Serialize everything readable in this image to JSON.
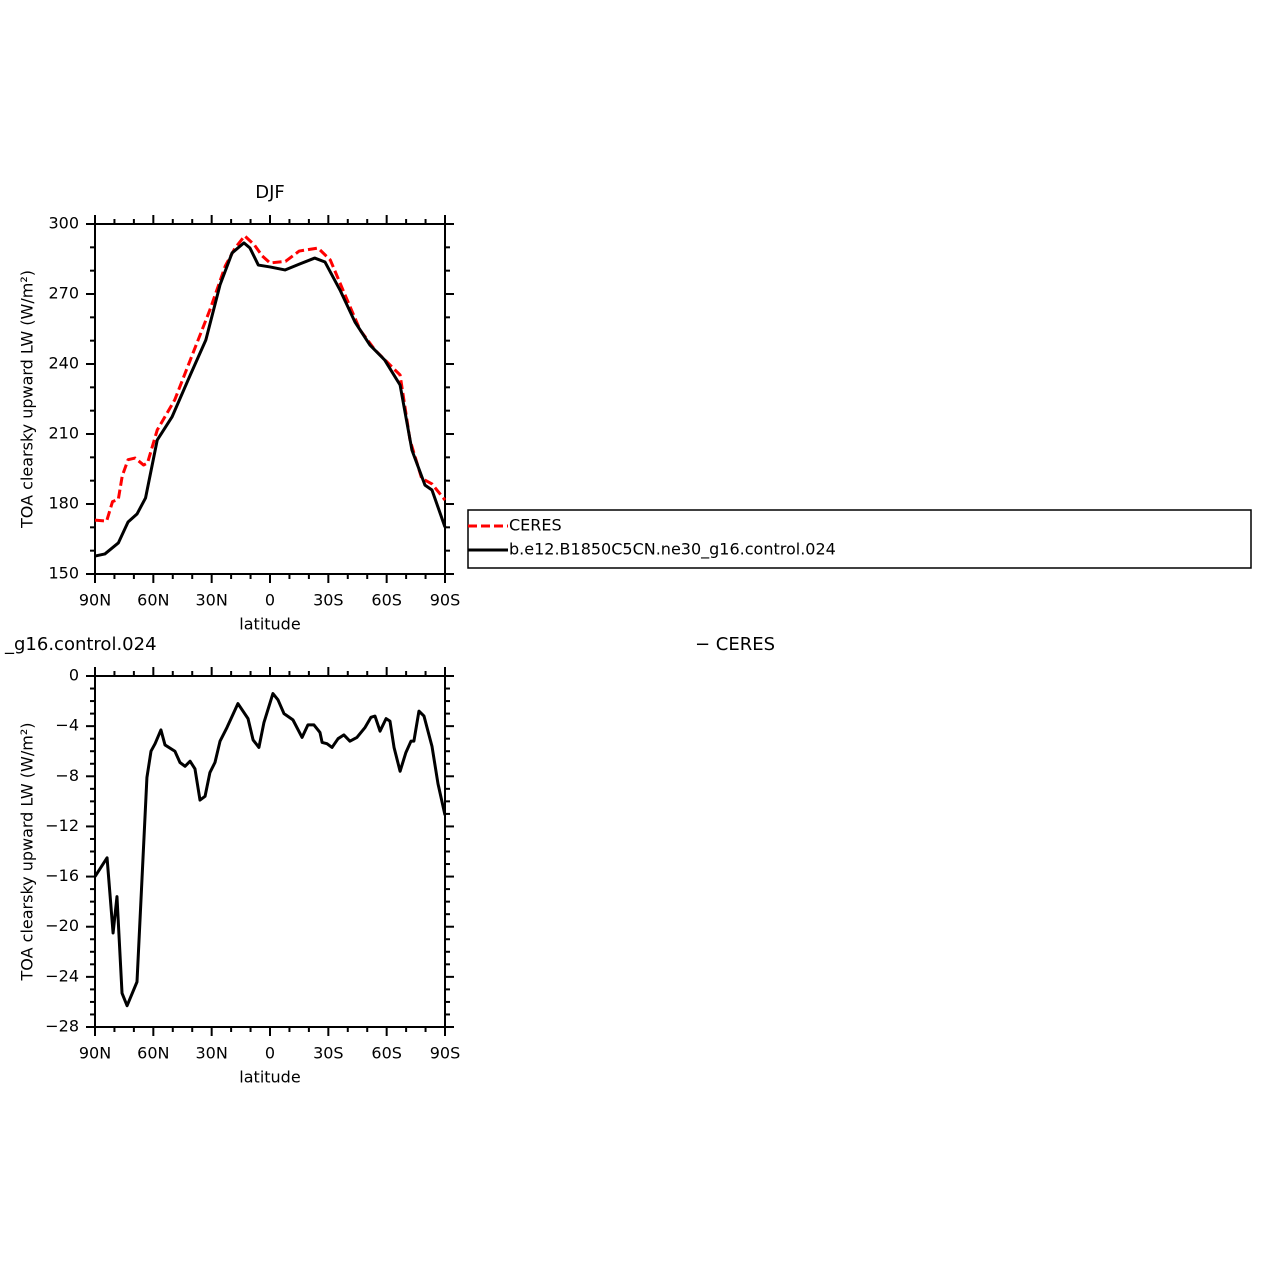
{
  "chart_data": [
    {
      "type": "line",
      "title": "DJF",
      "ylabel": "TOA clearsky upward LW (W/m²)",
      "xlabel": "latitude",
      "xlim": [
        90,
        -90
      ],
      "xticks": [
        {
          "value": 90,
          "label": "90N"
        },
        {
          "value": 60,
          "label": "60N"
        },
        {
          "value": 30,
          "label": "30N"
        },
        0,
        {
          "value": -30,
          "label": "30S"
        },
        {
          "value": -60,
          "label": "60S"
        },
        {
          "value": -90,
          "label": "90S"
        }
      ],
      "ylim": [
        150,
        300
      ],
      "yticks": [
        150,
        180,
        210,
        240,
        270,
        300
      ],
      "legend": "right",
      "series": [
        {
          "name": "CERES",
          "color": "#ff0000",
          "linestyle": "dashed",
          "x": [
            90,
            84,
            81,
            78,
            76,
            73,
            69.4,
            65,
            63,
            58,
            49,
            41,
            31,
            23,
            18,
            13,
            8,
            4,
            0,
            -8,
            -15,
            -24.7,
            -31,
            -38.6,
            -46.3,
            -54,
            -61.7,
            -66.9,
            -72,
            -78,
            -83.3,
            -90
          ],
          "values": [
            173.1,
            172.7,
            181,
            182,
            192,
            199,
            199.7,
            196.7,
            197.6,
            211.7,
            224.6,
            241.7,
            263,
            282,
            289.7,
            294.9,
            291,
            286.3,
            283.3,
            284,
            288.4,
            289.7,
            284.6,
            269.6,
            254.6,
            246,
            239.6,
            235.3,
            207.4,
            191,
            188.6,
            181.7
          ]
        },
        {
          "name": "b.e12.B1850C5CN.ne30_g16.control.024",
          "color": "#000000",
          "linestyle": "solid",
          "x": [
            90,
            84.9,
            78,
            73,
            68.4,
            64,
            58,
            50.4,
            41,
            33,
            25.7,
            19.5,
            13.4,
            10.3,
            6,
            0,
            -7.7,
            -15.4,
            -23,
            -28.3,
            -36,
            -43.7,
            -51.4,
            -59,
            -66.9,
            -73,
            -79.7,
            -83.3,
            -90
          ],
          "values": [
            157.7,
            158.6,
            163.3,
            172.3,
            175.7,
            182.6,
            207.4,
            217.3,
            235.3,
            250.3,
            273.9,
            287.6,
            291.9,
            289.7,
            282.4,
            281.6,
            280.3,
            282.9,
            285.4,
            283.7,
            271.7,
            258,
            248.1,
            241.7,
            231,
            203.1,
            188.1,
            186,
            170.1
          ]
        }
      ]
    },
    {
      "type": "line",
      "title_left": "_g16.control.024",
      "title_right": "− CERES",
      "ylabel": "TOA clearsky upward LW (W/m²)",
      "xlabel": "latitude",
      "xlim": [
        90,
        -90
      ],
      "xticks": [
        {
          "value": 90,
          "label": "90N"
        },
        {
          "value": 60,
          "label": "60N"
        },
        {
          "value": 30,
          "label": "30N"
        },
        0,
        {
          "value": -30,
          "label": "30S"
        },
        {
          "value": -60,
          "label": "60S"
        },
        {
          "value": -90,
          "label": "90S"
        }
      ],
      "ylim": [
        -28,
        0
      ],
      "yticks": [
        {
          "value": -28,
          "label": "−28"
        },
        {
          "value": -24,
          "label": "−24"
        },
        {
          "value": -20,
          "label": "−20"
        },
        {
          "value": -16,
          "label": "−16"
        },
        {
          "value": -12,
          "label": "−12"
        },
        {
          "value": -8,
          "label": "−8"
        },
        {
          "value": -4,
          "label": "−4"
        },
        0
      ],
      "series": [
        {
          "color": "#000000",
          "linestyle": "solid",
          "x": [
            90,
            83.8,
            80.7,
            78.7,
            76.1,
            73.5,
            68.4,
            63.3,
            61.2,
            59.1,
            56.1,
            54,
            48.9,
            46.3,
            43.7,
            41.1,
            38.6,
            36,
            33.4,
            30.9,
            28.3,
            25.7,
            22.1,
            16.5,
            11.3,
            8.7,
            5.7,
            3.1,
            -1.5,
            -4.1,
            -7.2,
            -11.8,
            -16.5,
            -19.5,
            -22.6,
            -25.7,
            -26.8,
            -29.3,
            -31.9,
            -35,
            -38,
            -41.1,
            -44.7,
            -48.9,
            -51.9,
            -54,
            -56.6,
            -59.7,
            -61.7,
            -63.8,
            -66.9,
            -69.9,
            -72.5,
            -74,
            -76.6,
            -79.2,
            -83.3,
            -86.4,
            -90
          ],
          "values": [
            -16.0,
            -14.5,
            -20.5,
            -17.6,
            -25.3,
            -26.3,
            -24.4,
            -8.1,
            -6.0,
            -5.4,
            -4.3,
            -5.5,
            -6.0,
            -6.9,
            -7.2,
            -6.8,
            -7.4,
            -9.9,
            -9.6,
            -7.7,
            -6.9,
            -5.2,
            -4.1,
            -2.2,
            -3.4,
            -5.1,
            -5.7,
            -3.7,
            -1.4,
            -1.9,
            -3.0,
            -3.5,
            -4.9,
            -3.9,
            -3.9,
            -4.5,
            -5.3,
            -5.4,
            -5.7,
            -5.0,
            -4.7,
            -5.2,
            -4.9,
            -4.1,
            -3.3,
            -3.2,
            -4.4,
            -3.4,
            -3.6,
            -5.7,
            -7.6,
            -6.1,
            -5.2,
            -5.2,
            -2.8,
            -3.2,
            -5.6,
            -8.6,
            -11.1
          ]
        }
      ]
    }
  ]
}
